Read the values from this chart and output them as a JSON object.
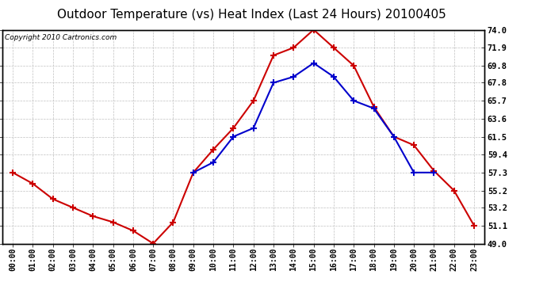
{
  "title": "Outdoor Temperature (vs) Heat Index (Last 24 Hours) 20100405",
  "copyright": "Copyright 2010 Cartronics.com",
  "hours": [
    "00:00",
    "01:00",
    "02:00",
    "03:00",
    "04:00",
    "05:00",
    "06:00",
    "07:00",
    "08:00",
    "09:00",
    "10:00",
    "11:00",
    "12:00",
    "13:00",
    "14:00",
    "15:00",
    "16:00",
    "17:00",
    "18:00",
    "19:00",
    "20:00",
    "21:00",
    "22:00",
    "23:00"
  ],
  "temp": [
    57.3,
    56.0,
    54.2,
    53.2,
    52.2,
    51.5,
    50.5,
    49.0,
    51.5,
    57.3,
    60.0,
    62.5,
    65.7,
    71.0,
    71.9,
    74.0,
    71.9,
    69.8,
    65.0,
    61.5,
    60.5,
    57.5,
    55.2,
    51.1
  ],
  "heat_index": [
    null,
    null,
    null,
    null,
    null,
    null,
    null,
    null,
    null,
    57.3,
    58.5,
    61.5,
    62.5,
    67.8,
    68.5,
    70.1,
    68.5,
    65.7,
    64.8,
    61.5,
    57.3,
    57.3,
    null,
    null
  ],
  "ylim": [
    49.0,
    74.0
  ],
  "yticks": [
    49.0,
    51.1,
    53.2,
    55.2,
    57.3,
    59.4,
    61.5,
    63.6,
    65.7,
    67.8,
    69.8,
    71.9,
    74.0
  ],
  "temp_color": "#cc0000",
  "heat_color": "#0000cc",
  "bg_color": "#ffffff",
  "plot_bg_color": "#ffffff",
  "grid_color": "#c0c0c0",
  "title_fontsize": 11,
  "copyright_fontsize": 6.5
}
